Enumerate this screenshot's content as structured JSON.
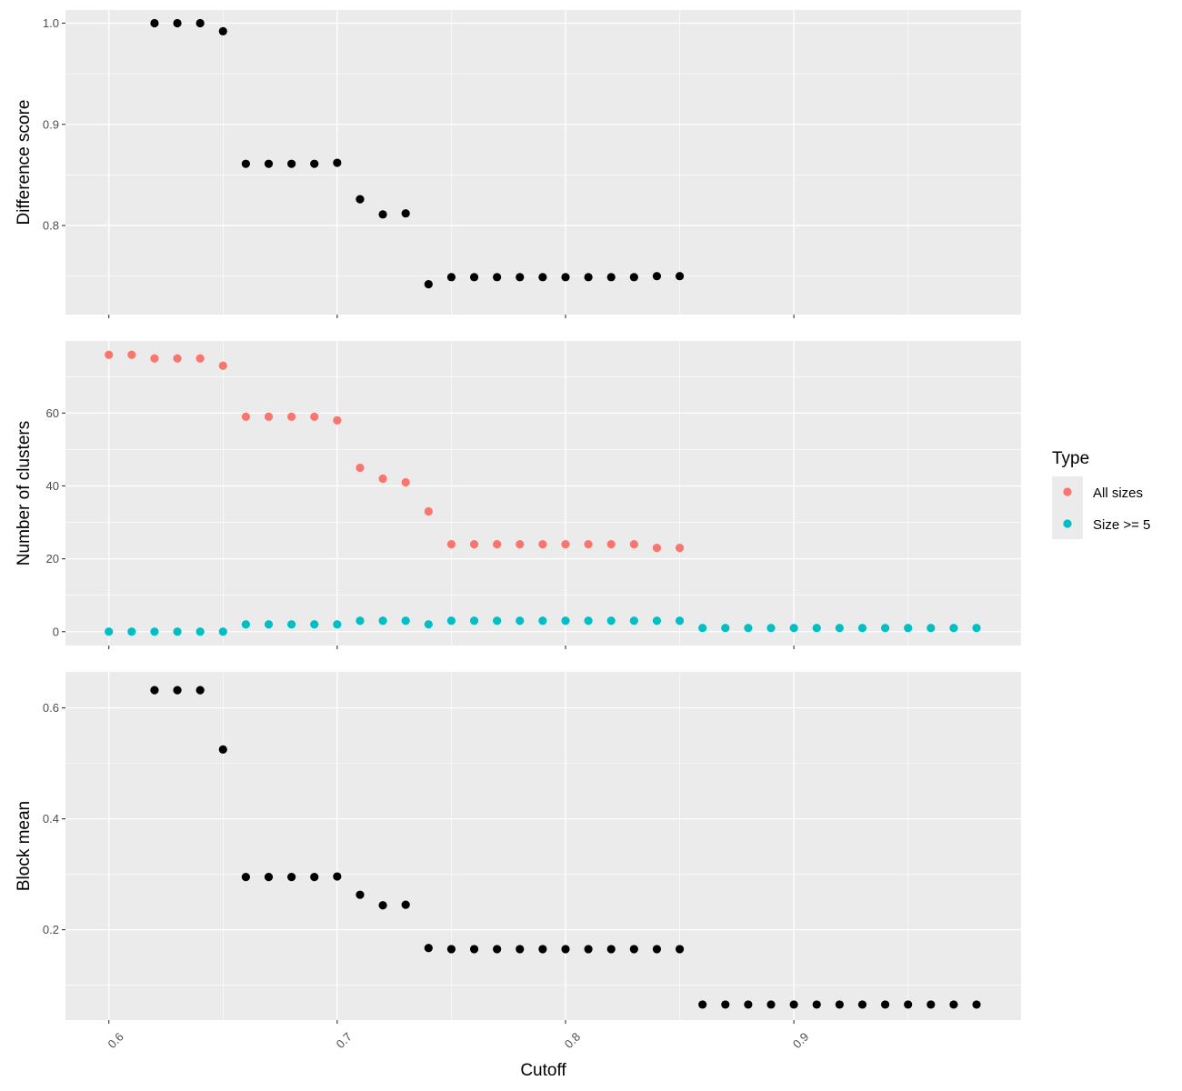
{
  "colors": {
    "panel_bg": "#ebebeb",
    "grid": "#ffffff",
    "tick": "#333333",
    "points_black": "#000000",
    "all_sizes": "#f8766d",
    "size_ge_5": "#00bfc4"
  },
  "chart_data": [
    {
      "type": "scatter",
      "ylabel": "Difference score",
      "xlim": [
        0.581,
        0.9995
      ],
      "ylim": [
        0.712,
        1.013
      ],
      "yticks": [
        0.8,
        0.9,
        1.0
      ],
      "ytick_labels": [
        "0.8",
        "0.9",
        "1.0"
      ],
      "series": [
        {
          "color": "#000000",
          "x": [
            0.62,
            0.63,
            0.64,
            0.65,
            0.66,
            0.67,
            0.68,
            0.69,
            0.7,
            0.71,
            0.72,
            0.73,
            0.74,
            0.75,
            0.76,
            0.77,
            0.78,
            0.79,
            0.8,
            0.81,
            0.82,
            0.83,
            0.84,
            0.85
          ],
          "y": [
            1.0,
            1.0,
            1.0,
            0.992,
            0.861,
            0.861,
            0.861,
            0.861,
            0.862,
            0.826,
            0.811,
            0.812,
            0.742,
            0.749,
            0.749,
            0.749,
            0.749,
            0.749,
            0.749,
            0.749,
            0.749,
            0.749,
            0.75,
            0.75
          ]
        }
      ]
    },
    {
      "type": "scatter",
      "ylabel": "Number of clusters",
      "xlim": [
        0.581,
        0.9995
      ],
      "ylim": [
        -3.8,
        79.8
      ],
      "yticks": [
        0,
        20,
        40,
        60
      ],
      "ytick_labels": [
        "0",
        "20",
        "40",
        "60"
      ],
      "series": [
        {
          "name": "All sizes",
          "color": "#f8766d",
          "x": [
            0.6,
            0.61,
            0.62,
            0.63,
            0.64,
            0.65,
            0.66,
            0.67,
            0.68,
            0.69,
            0.7,
            0.71,
            0.72,
            0.73,
            0.74,
            0.75,
            0.76,
            0.77,
            0.78,
            0.79,
            0.8,
            0.81,
            0.82,
            0.83,
            0.84,
            0.85
          ],
          "y": [
            76,
            76,
            75,
            75,
            75,
            73,
            59,
            59,
            59,
            59,
            58,
            45,
            42,
            41,
            33,
            24,
            24,
            24,
            24,
            24,
            24,
            24,
            24,
            24,
            23,
            23
          ]
        },
        {
          "name": "Size >= 5",
          "color": "#00bfc4",
          "x": [
            0.6,
            0.61,
            0.62,
            0.63,
            0.64,
            0.65,
            0.66,
            0.67,
            0.68,
            0.69,
            0.7,
            0.71,
            0.72,
            0.73,
            0.74,
            0.75,
            0.76,
            0.77,
            0.78,
            0.79,
            0.8,
            0.81,
            0.82,
            0.83,
            0.84,
            0.85,
            0.86,
            0.87,
            0.88,
            0.89,
            0.9,
            0.91,
            0.92,
            0.93,
            0.94,
            0.95,
            0.96,
            0.97,
            0.98
          ],
          "y": [
            0,
            0,
            0,
            0,
            0,
            0,
            2,
            2,
            2,
            2,
            2,
            3,
            3,
            3,
            2,
            3,
            3,
            3,
            3,
            3,
            3,
            3,
            3,
            3,
            3,
            3,
            1,
            1,
            1,
            1,
            1,
            1,
            1,
            1,
            1,
            1,
            1,
            1,
            1
          ]
        }
      ]
    },
    {
      "type": "scatter",
      "ylabel": "Block mean",
      "xlabel": "Cutoff",
      "xlim": [
        0.581,
        0.9995
      ],
      "ylim": [
        0.037,
        0.665
      ],
      "yticks": [
        0.2,
        0.4,
        0.6
      ],
      "ytick_labels": [
        "0.2",
        "0.4",
        "0.6"
      ],
      "xticks": [
        0.6,
        0.7,
        0.8,
        0.9
      ],
      "xtick_labels": [
        "0.6",
        "0.7",
        "0.8",
        "0.9"
      ],
      "series": [
        {
          "color": "#000000",
          "x": [
            0.62,
            0.63,
            0.64,
            0.65,
            0.66,
            0.67,
            0.68,
            0.69,
            0.7,
            0.71,
            0.72,
            0.73,
            0.74,
            0.75,
            0.76,
            0.77,
            0.78,
            0.79,
            0.8,
            0.81,
            0.82,
            0.83,
            0.84,
            0.85,
            0.86,
            0.87,
            0.88,
            0.89,
            0.9,
            0.91,
            0.92,
            0.93,
            0.94,
            0.95,
            0.96,
            0.97,
            0.98
          ],
          "y": [
            0.632,
            0.632,
            0.632,
            0.525,
            0.295,
            0.295,
            0.295,
            0.295,
            0.296,
            0.263,
            0.244,
            0.245,
            0.167,
            0.165,
            0.165,
            0.165,
            0.165,
            0.165,
            0.165,
            0.165,
            0.165,
            0.165,
            0.165,
            0.165,
            0.065,
            0.065,
            0.065,
            0.065,
            0.065,
            0.065,
            0.065,
            0.065,
            0.065,
            0.065,
            0.065,
            0.065,
            0.065
          ]
        }
      ]
    }
  ],
  "legend": {
    "title": "Type",
    "placement": "right",
    "items": [
      {
        "label": "All sizes",
        "color": "#f8766d"
      },
      {
        "label": "Size >= 5",
        "color": "#00bfc4"
      }
    ]
  }
}
